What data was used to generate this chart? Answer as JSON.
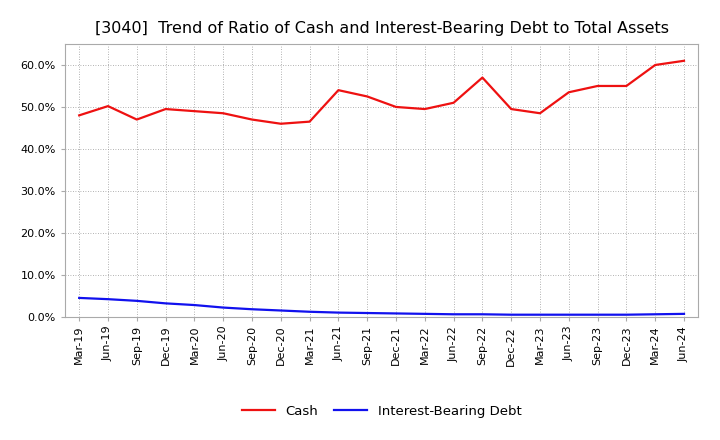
{
  "title": "[3040]  Trend of Ratio of Cash and Interest-Bearing Debt to Total Assets",
  "labels": [
    "Mar-19",
    "Jun-19",
    "Sep-19",
    "Dec-19",
    "Mar-20",
    "Jun-20",
    "Sep-20",
    "Dec-20",
    "Mar-21",
    "Jun-21",
    "Sep-21",
    "Dec-21",
    "Mar-22",
    "Jun-22",
    "Sep-22",
    "Dec-22",
    "Mar-23",
    "Jun-23",
    "Sep-23",
    "Dec-23",
    "Mar-24",
    "Jun-24"
  ],
  "cash": [
    48.0,
    50.2,
    47.0,
    49.5,
    49.0,
    48.5,
    47.0,
    46.0,
    46.5,
    54.0,
    52.5,
    50.0,
    49.5,
    51.0,
    57.0,
    49.5,
    48.5,
    53.5,
    55.0,
    55.0,
    60.0,
    61.0
  ],
  "debt": [
    4.5,
    4.2,
    3.8,
    3.2,
    2.8,
    2.2,
    1.8,
    1.5,
    1.2,
    1.0,
    0.9,
    0.8,
    0.7,
    0.6,
    0.6,
    0.5,
    0.5,
    0.5,
    0.5,
    0.5,
    0.6,
    0.7
  ],
  "cash_color": "#EE1111",
  "debt_color": "#1111EE",
  "background_color": "#FFFFFF",
  "plot_bg_color": "#FFFFFF",
  "grid_color": "#999999",
  "ylim_min": 0,
  "ylim_max": 65,
  "yticks": [
    0,
    10,
    20,
    30,
    40,
    50,
    60
  ],
  "ytick_labels": [
    "0.0%",
    "10.0%",
    "20.0%",
    "30.0%",
    "40.0%",
    "50.0%",
    "60.0%"
  ],
  "legend_cash": "Cash",
  "legend_debt": "Interest-Bearing Debt",
  "title_fontsize": 11.5,
  "axis_fontsize": 8.0,
  "legend_fontsize": 9.5,
  "line_width": 1.6
}
